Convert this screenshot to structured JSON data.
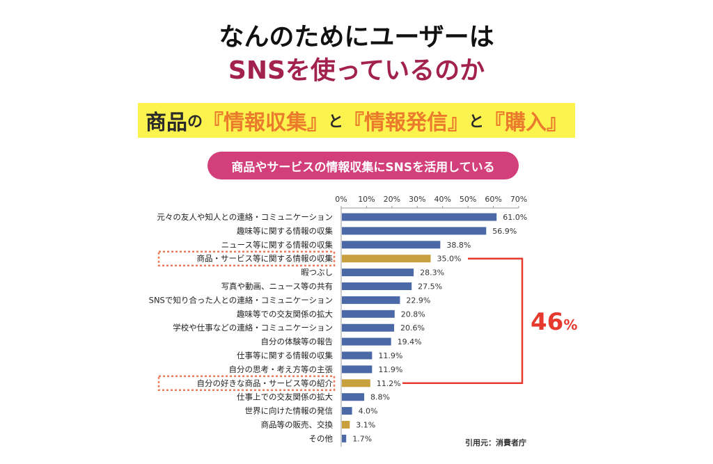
{
  "title": {
    "line1": "なんのためにユーザーは",
    "line2": "SNSを使っているのか"
  },
  "banner": {
    "p1": "商品",
    "p2": "の",
    "p3": "『情報収集』",
    "p4": "と",
    "p5": "『情報発信』",
    "p6": "と",
    "p7": "『購入』"
  },
  "pill": "商品やサービスの情報収集にSNSを活用している",
  "callout": {
    "value": "46",
    "unit": "%"
  },
  "source": "引用元：消費者庁",
  "colors": {
    "normal": "#4a69a6",
    "highlight": "#c8a03e",
    "bracket": "#e63a2e"
  },
  "chart_data": {
    "type": "bar",
    "orientation": "horizontal",
    "xlim": [
      0,
      70
    ],
    "ticks": [
      "0%",
      "10%",
      "20%",
      "30%",
      "40%",
      "50%",
      "60%",
      "70%"
    ],
    "categories": [
      "元々の友人や知人との連絡・コミュニケーション",
      "趣味等に関する情報の収集",
      "ニュース等に関する情報の収集",
      "商品・サービス等に関する情報の収集",
      "暇つぶし",
      "写真や動画、ニュース等の共有",
      "SNSで知り合った人との連絡・コミュニケーション",
      "趣味等での交友関係の拡大",
      "学校や仕事などの連絡・コミュニケーション",
      "自分の体験等の報告",
      "仕事等に関する情報の収集",
      "自分の思考・考え方等の主張",
      "自分の好きな商品・サービス等の紹介",
      "仕事上での交友関係の拡大",
      "世界に向けた情報の発信",
      "商品等の販売、交換",
      "その他"
    ],
    "values": [
      61.0,
      56.9,
      38.8,
      35.0,
      28.3,
      27.5,
      22.9,
      20.8,
      20.6,
      19.4,
      11.9,
      11.9,
      11.2,
      8.8,
      4.0,
      3.1,
      1.7
    ],
    "labels": [
      "61.0%",
      "56.9%",
      "38.8%",
      "35.0%",
      "28.3%",
      "27.5%",
      "22.9%",
      "20.8%",
      "20.6%",
      "19.4%",
      "11.9%",
      "11.9%",
      "11.2%",
      "8.8%",
      "4.0%",
      "3.1%",
      "1.7%"
    ],
    "highlighted": [
      3,
      12,
      15
    ],
    "boxed": [
      3,
      12
    ]
  }
}
